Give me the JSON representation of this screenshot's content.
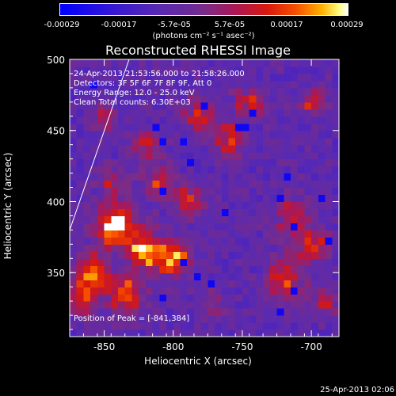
{
  "colorbar": {
    "ticks": [
      "-0.00029",
      "-0.00017",
      "-5.7e-05",
      "5.7e-05",
      "0.00017",
      "0.00029"
    ],
    "units": "(photons cm⁻² s⁻¹ asec⁻²)",
    "colors": [
      "#0000ff",
      "#6b2a9a",
      "#d8180e",
      "#ffb000",
      "#ffffff"
    ]
  },
  "chart_data": {
    "type": "heatmap",
    "title": "Reconstructed RHESSI Image",
    "xlabel": "Heliocentric X (arcsec)",
    "ylabel": "Heliocentric Y (arcsec)",
    "xlim": [
      -875,
      -680
    ],
    "ylim": [
      305,
      500
    ],
    "x_ticks": [
      "-850",
      "-800",
      "-750",
      "-700"
    ],
    "y_ticks": [
      "350",
      "400",
      "450",
      "500"
    ],
    "annotations": {
      "time_range": "24-Apr-2013 21:53:56.000 to 21:58:26.000",
      "detectors": "Detectors: 3F 5F 6F 7F 8F 9F, Att 0",
      "energy_range": "Energy Range: 12.0 - 25.0 keV",
      "method_counts": "Clean     Total counts: 6.30E+03",
      "peak_position": "Position of Peak = [-841,384]"
    },
    "peak": [
      -841,
      384
    ],
    "value_range": [
      -0.00029,
      0.00029
    ],
    "limb_line": [
      [
        -875,
        380
      ],
      [
        -832,
        500
      ]
    ]
  },
  "footer_date": "25-Apr-2013 02:06"
}
